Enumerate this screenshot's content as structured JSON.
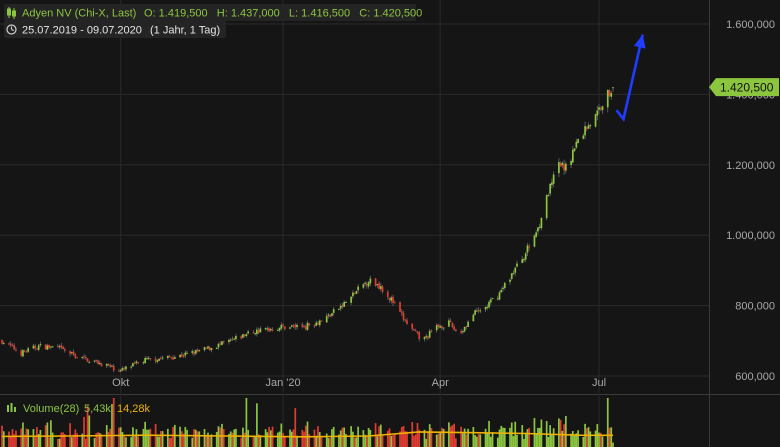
{
  "header": {
    "instrument": "Adyen NV (Chi-X, Last)",
    "ohlc": "O: 1.419,500   H: 1.437,000   L: 1.416,500   C: 1.420,500",
    "range": "25.07.2019 - 09.07.2020",
    "period": "(1 Jahr, 1 Tag)"
  },
  "last_price_label": "1.420,500",
  "colors": {
    "background": "#151515",
    "grid": "#2a2a2a",
    "up": "#8cc63f",
    "down": "#e03c31",
    "wick": "#6a6a6a",
    "arrow": "#1f3cff",
    "price_badge": "#8cc63f",
    "volume_avg": "#f0b400",
    "axis_text": "#a8a8a8"
  },
  "volume_panel": {
    "label": "Volume(28)",
    "current": "5,43k",
    "average": "14,28k"
  },
  "chart_data": {
    "type": "candlestick",
    "y_axis": {
      "min": 580000,
      "max": 1650000,
      "ticks": [
        600000,
        800000,
        1000000,
        1200000,
        1400000,
        1600000
      ],
      "tick_labels": [
        "600,000",
        "800,000",
        "1.000,000",
        "1.200,000",
        "1.400,000",
        "1.600,000"
      ],
      "last_value": 1420500
    },
    "x_axis": {
      "start": "2019-07-25",
      "end": "2020-07-09",
      "ticks": [
        "2019-10-01",
        "2020-01-02",
        "2020-04-01",
        "2020-07-01"
      ],
      "tick_labels": [
        "Okt",
        "Jan '20",
        "Apr",
        "Jul"
      ]
    },
    "price_path": [
      [
        "2019-07-25",
        700000
      ],
      [
        "2019-08-05",
        665000
      ],
      [
        "2019-08-15",
        685000
      ],
      [
        "2019-08-26",
        680000
      ],
      [
        "2019-09-06",
        655000
      ],
      [
        "2019-09-20",
        635000
      ],
      [
        "2019-10-01",
        615000
      ],
      [
        "2019-10-15",
        645000
      ],
      [
        "2019-11-01",
        655000
      ],
      [
        "2019-11-15",
        670000
      ],
      [
        "2019-12-01",
        695000
      ],
      [
        "2019-12-15",
        725000
      ],
      [
        "2020-01-02",
        740000
      ],
      [
        "2020-01-15",
        742000
      ],
      [
        "2020-01-25",
        760000
      ],
      [
        "2020-02-05",
        800000
      ],
      [
        "2020-02-12",
        835000
      ],
      [
        "2020-02-20",
        872000
      ],
      [
        "2020-02-27",
        855000
      ],
      [
        "2020-03-05",
        810000
      ],
      [
        "2020-03-10",
        770000
      ],
      [
        "2020-03-16",
        730000
      ],
      [
        "2020-03-22",
        700000
      ],
      [
        "2020-03-30",
        740000
      ],
      [
        "2020-04-06",
        750000
      ],
      [
        "2020-04-12",
        718000
      ],
      [
        "2020-04-20",
        775000
      ],
      [
        "2020-04-27",
        795000
      ],
      [
        "2020-05-05",
        835000
      ],
      [
        "2020-05-12",
        890000
      ],
      [
        "2020-05-20",
        950000
      ],
      [
        "2020-05-27",
        1020000
      ],
      [
        "2020-06-02",
        1120000
      ],
      [
        "2020-06-08",
        1200000
      ],
      [
        "2020-06-12",
        1190000
      ],
      [
        "2020-06-18",
        1260000
      ],
      [
        "2020-06-24",
        1310000
      ],
      [
        "2020-06-29",
        1335000
      ],
      [
        "2020-07-03",
        1380000
      ],
      [
        "2020-07-09",
        1420500
      ]
    ],
    "annotation_arrow": {
      "points": [
        [
          "2020-07-11",
          1355000
        ],
        [
          "2020-07-15",
          1330000
        ],
        [
          "2020-07-26",
          1570000
        ]
      ]
    },
    "volume": {
      "max": 60000,
      "average_series": [
        [
          "2019-07-25",
          13000
        ],
        [
          "2019-09-01",
          13500
        ],
        [
          "2019-10-15",
          14500
        ],
        [
          "2019-12-01",
          13500
        ],
        [
          "2020-01-15",
          12500
        ],
        [
          "2020-02-20",
          13500
        ],
        [
          "2020-03-20",
          18500
        ],
        [
          "2020-04-20",
          17500
        ],
        [
          "2020-05-20",
          16500
        ],
        [
          "2020-06-20",
          14500
        ],
        [
          "2020-07-09",
          14280
        ]
      ]
    }
  }
}
